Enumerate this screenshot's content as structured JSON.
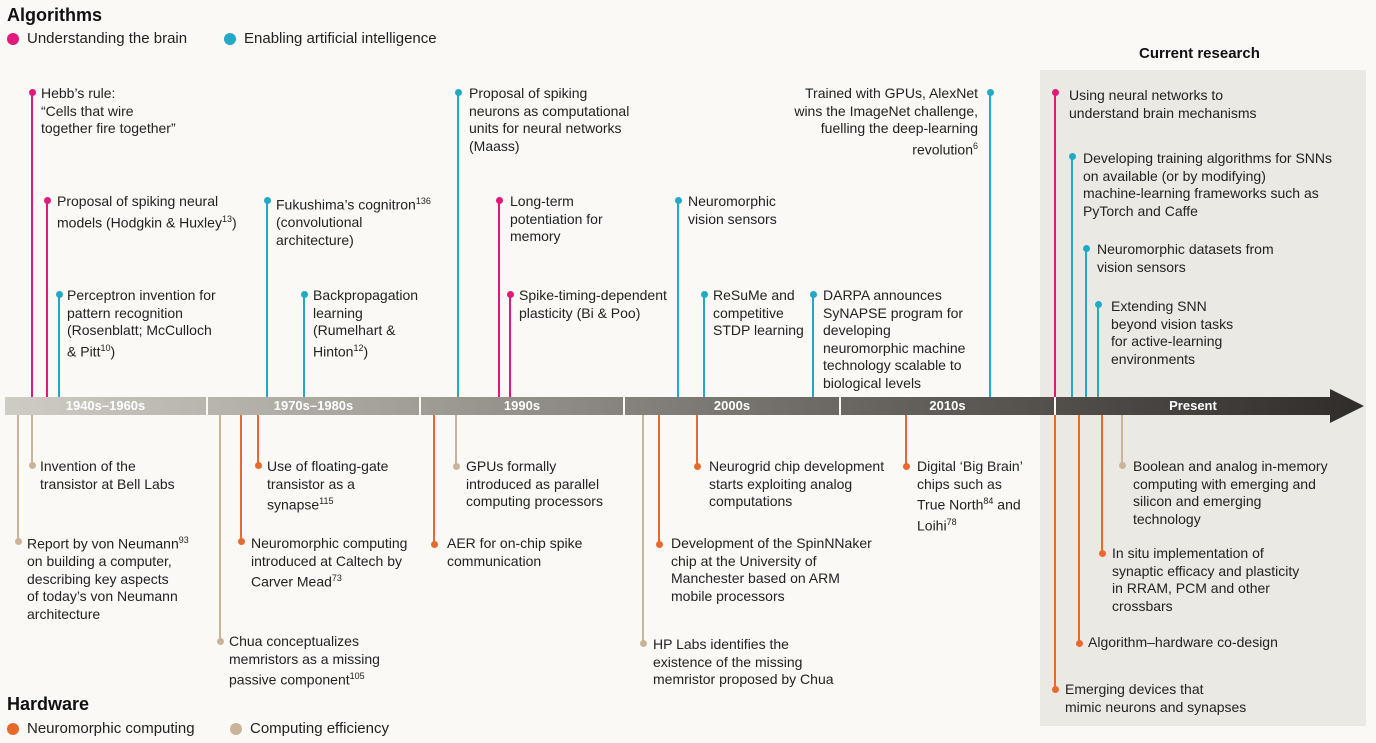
{
  "algorithms": {
    "heading": "Algorithms",
    "legend": [
      {
        "label": "Understanding the brain",
        "color": "#e0197a"
      },
      {
        "label": "Enabling artificial intelligence",
        "color": "#22a9c6"
      }
    ]
  },
  "hardware": {
    "heading": "Hardware",
    "legend": [
      {
        "label": "Neuromorphic computing",
        "color": "#e8692e"
      },
      {
        "label": "Computing efficiency",
        "color": "#c9b49a"
      }
    ]
  },
  "current_research": {
    "heading": "Current research"
  },
  "eras": [
    "1940s–1960s",
    "1970s–1980s",
    "1990s",
    "2000s",
    "2010s",
    "Present"
  ],
  "above": {
    "hebb": "Hebb’s rule:\n“Cells that wire\ntogether fire together”",
    "hodgkin": "Proposal of spiking neural\nmodels (Hodgkin & Huxley",
    "hodgkin_ref": "13",
    "perceptron": "Perceptron invention for\npattern recognition\n(Rosenblatt; McCulloch\n& Pitt",
    "perceptron_ref": "10",
    "fukushima_a": "Fukushima’s cognitron",
    "fukushima_ref": "136",
    "fukushima_b": "(convolutional\narchitecture)",
    "backprop": "Backpropagation\nlearning\n(Rumelhart &\nHinton",
    "backprop_ref": "12",
    "maass": "Proposal of spiking\nneurons as computational\nunits for neural networks\n(Maass)",
    "ltp": "Long-term\npotentiation for\nmemory",
    "stdp": "Spike-timing-dependent\nplasticity (Bi & Poo)",
    "vision_sensors": "Neuromorphic\nvision sensors",
    "resume": "ReSuMe and\ncompetitive\nSTDP learning",
    "darpa": "DARPA announces\nSyNAPSE program for\ndeveloping\nneuromorphic machine\ntechnology scalable to\nbiological levels",
    "alexnet": "Trained with GPUs, AlexNet\nwins the ImageNet challenge,\nfuelling the deep-learning\nrevolution",
    "alexnet_ref": "6",
    "cr_brain": "Using neural networks to\nunderstand brain mechanisms",
    "cr_training": "Developing training algorithms for SNNs\non available (or by modifying)\nmachine-learning frameworks such as\nPyTorch and Caffe",
    "cr_datasets": "Neuromorphic datasets from\nvision sensors",
    "cr_extending": "Extending SNN\nbeyond vision tasks\nfor active-learning\nenvironments"
  },
  "below": {
    "transistor": "Invention of the\ntransistor at Bell Labs",
    "vonneumann_a": "Report by von Neumann",
    "vonneumann_ref": "93",
    "vonneumann_b": "on building a computer,\ndescribing key aspects\nof today’s von Neumann\narchitecture",
    "chua": "Chua conceptualizes\nmemristors as a missing\npassive component",
    "chua_ref": "105",
    "floating_gate": "Use of floating-gate\ntransistor as a\nsynapse",
    "floating_gate_ref": "115",
    "caltech": "Neuromorphic computing\nintroduced at Caltech by\nCarver Mead",
    "caltech_ref": "73",
    "gpus": "GPUs formally\nintroduced as parallel\ncomputing processors",
    "aer": "AER for on-chip spike\ncommunication",
    "hp": "HP Labs identifies the\nexistence of the missing\nmemristor proposed by Chua",
    "spinnaker": "Development of the SpinNNaker\nchip at the University of\nManchester based on ARM\nmobile processors",
    "neurogrid": "Neurogrid chip development\nstarts exploiting analog\ncomputations",
    "bigbrain_a": "Digital ‘Big Brain’\nchips such as\nTrue North",
    "bigbrain_ref1": "84",
    "bigbrain_and": " and\nLoihi",
    "bigbrain_ref2": "78",
    "cr_boolean": "Boolean and analog in-memory\ncomputing with emerging and\nsilicon and emerging\ntechnology",
    "cr_insitu": "In situ implementation of\nsynaptic efficacy and plasticity\nin RRAM, PCM and other\ncrossbars",
    "cr_codesign": "Algorithm–hardware co-design",
    "cr_devices": "Emerging devices that\nmimic neurons and synapses"
  }
}
